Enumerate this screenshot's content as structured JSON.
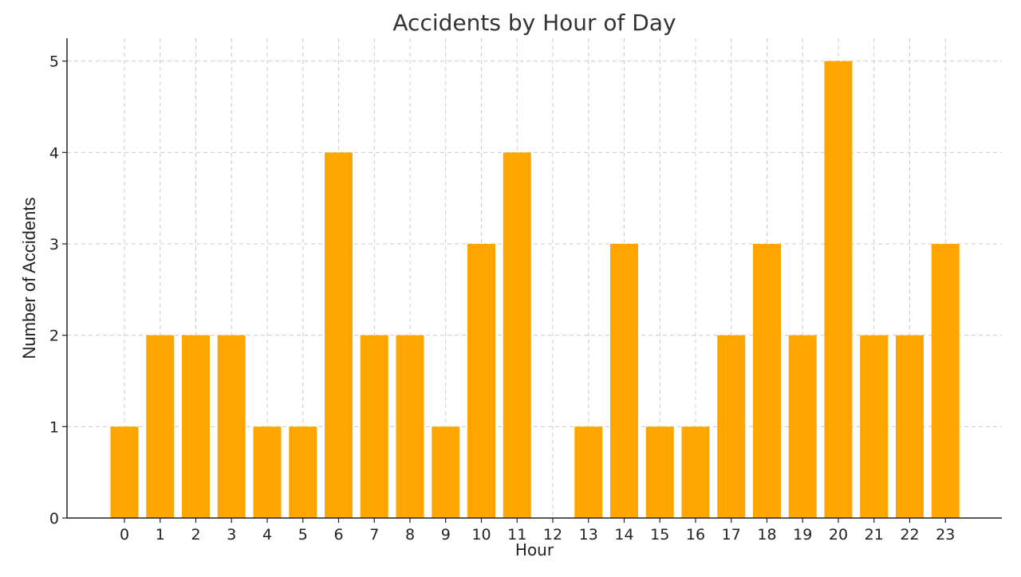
{
  "chart_data": {
    "type": "bar",
    "title": "Accidents by Hour of Day",
    "xlabel": "Hour",
    "ylabel": "Number of Accidents",
    "categories": [
      "0",
      "1",
      "2",
      "3",
      "4",
      "5",
      "6",
      "7",
      "8",
      "9",
      "10",
      "11",
      "12",
      "13",
      "14",
      "15",
      "16",
      "17",
      "18",
      "19",
      "20",
      "21",
      "22",
      "23"
    ],
    "values": [
      1,
      2,
      2,
      2,
      1,
      1,
      4,
      2,
      2,
      1,
      3,
      4,
      0,
      1,
      3,
      1,
      1,
      2,
      3,
      2,
      5,
      2,
      2,
      3
    ],
    "ylim": [
      0,
      5.25
    ],
    "yticks": [
      0,
      1,
      2,
      3,
      4,
      5
    ],
    "grid": true,
    "bar_color": "#FFA500",
    "axis_color": "#222222",
    "grid_color": "#cccccc"
  }
}
